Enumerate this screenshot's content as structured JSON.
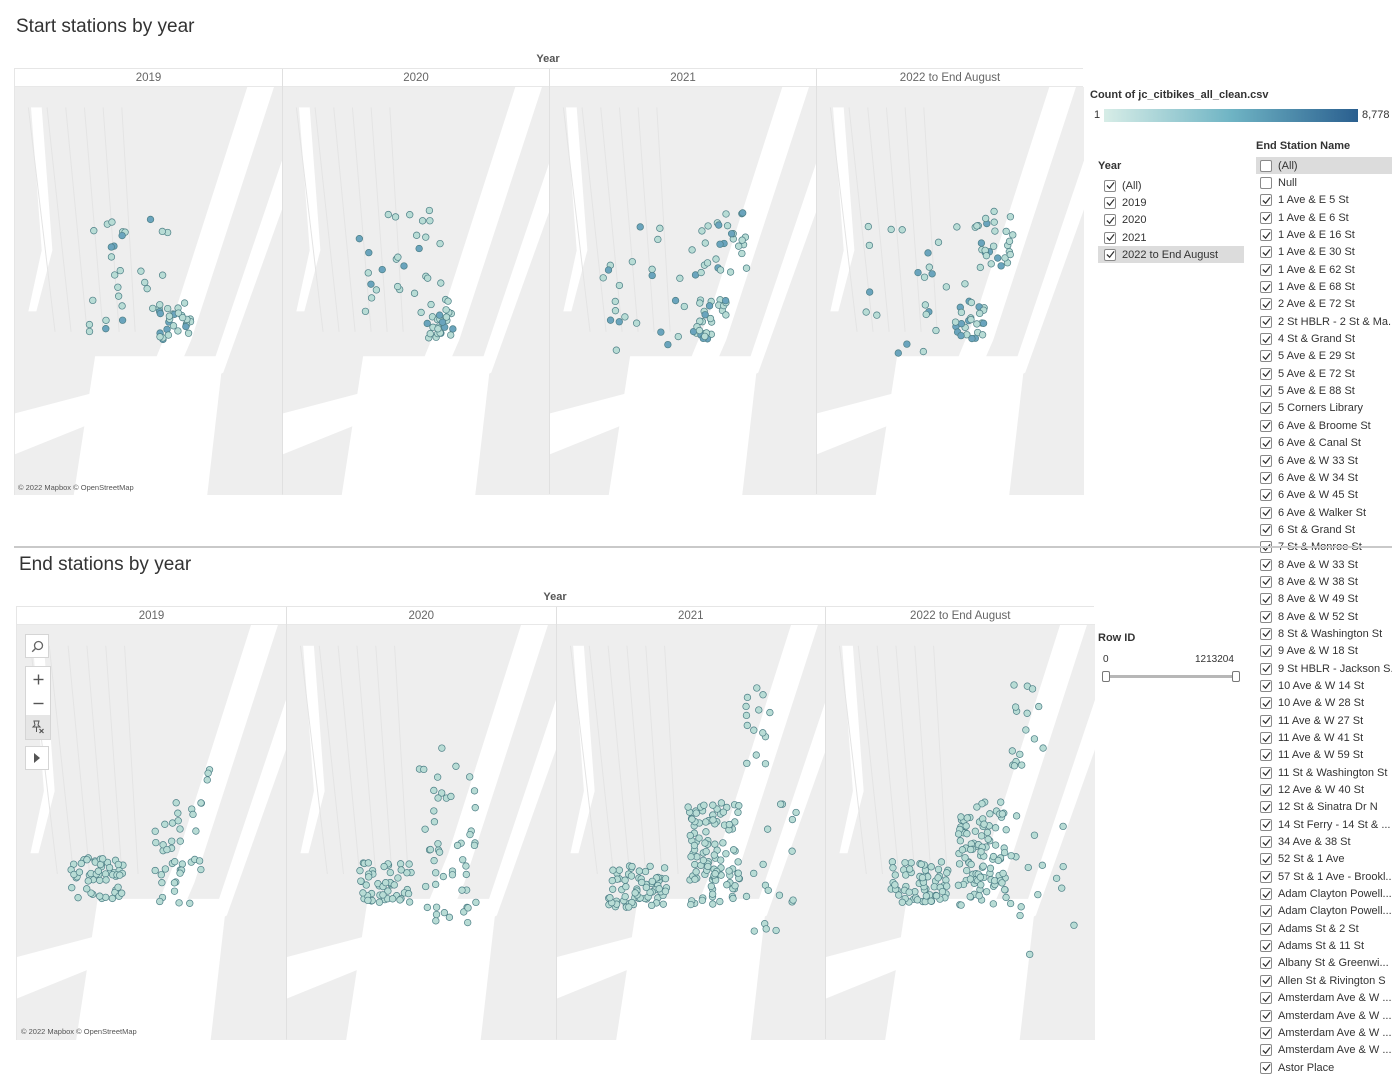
{
  "top": {
    "title": "Start stations by year",
    "year_header": "Year",
    "columns": [
      "2019",
      "2020",
      "2021",
      "2022 to End August"
    ],
    "attribution": "© 2022 Mapbox © OpenStreetMap"
  },
  "bottom": {
    "title": "End stations by year",
    "year_header": "Year",
    "columns": [
      "2019",
      "2020",
      "2021",
      "2022 to End August"
    ],
    "attribution": "© 2022 Mapbox © OpenStreetMap"
  },
  "legend": {
    "title": "Count of jc_citbikes_all_clean.csv",
    "min": "1",
    "max": "8,778",
    "colors": [
      "#d7ede7",
      "#6fb4c4",
      "#2a5f8f"
    ]
  },
  "year_filter": {
    "title": "Year",
    "items": [
      {
        "label": "(All)",
        "checked": true,
        "selected": false
      },
      {
        "label": "2019",
        "checked": true,
        "selected": false
      },
      {
        "label": "2020",
        "checked": true,
        "selected": false
      },
      {
        "label": "2021",
        "checked": true,
        "selected": false
      },
      {
        "label": "2022 to End August",
        "checked": true,
        "selected": true
      }
    ]
  },
  "row_id": {
    "title": "Row ID",
    "min": "0",
    "max": "1213204"
  },
  "end_station_filter": {
    "title": "End Station Name",
    "items": [
      {
        "label": "(All)",
        "checked": false,
        "selected": true
      },
      {
        "label": "Null",
        "checked": false,
        "selected": false
      },
      {
        "label": "1 Ave & E 5 St",
        "checked": true
      },
      {
        "label": "1 Ave & E 6 St",
        "checked": true
      },
      {
        "label": "1 Ave & E 16 St",
        "checked": true
      },
      {
        "label": "1 Ave & E 30 St",
        "checked": true
      },
      {
        "label": "1 Ave & E 62 St",
        "checked": true
      },
      {
        "label": "1 Ave & E 68 St",
        "checked": true
      },
      {
        "label": "2 Ave & E 72 St",
        "checked": true
      },
      {
        "label": "2 St HBLR - 2 St & Ma...",
        "checked": true
      },
      {
        "label": "4 St & Grand St",
        "checked": true
      },
      {
        "label": "5 Ave & E 29 St",
        "checked": true
      },
      {
        "label": "5 Ave & E 72 St",
        "checked": true
      },
      {
        "label": "5 Ave & E 88 St",
        "checked": true
      },
      {
        "label": "5 Corners Library",
        "checked": true
      },
      {
        "label": "6 Ave & Broome St",
        "checked": true
      },
      {
        "label": "6 Ave & Canal St",
        "checked": true
      },
      {
        "label": "6 Ave & W 33 St",
        "checked": true
      },
      {
        "label": "6 Ave & W 34 St",
        "checked": true
      },
      {
        "label": "6 Ave & W 45 St",
        "checked": true
      },
      {
        "label": "6 Ave & Walker St",
        "checked": true
      },
      {
        "label": "6 St & Grand St",
        "checked": true
      },
      {
        "label": "7 St & Monroe St",
        "checked": true
      },
      {
        "label": "8 Ave & W 33 St",
        "checked": true
      },
      {
        "label": "8 Ave & W 38 St",
        "checked": true
      },
      {
        "label": "8 Ave & W 49 St",
        "checked": true
      },
      {
        "label": "8 Ave & W 52 St",
        "checked": true
      },
      {
        "label": "8 St & Washington St",
        "checked": true
      },
      {
        "label": "9 Ave & W 18 St",
        "checked": true
      },
      {
        "label": "9 St HBLR - Jackson S...",
        "checked": true
      },
      {
        "label": "10 Ave & W 14 St",
        "checked": true
      },
      {
        "label": "10 Ave & W 28 St",
        "checked": true
      },
      {
        "label": "11 Ave & W 27 St",
        "checked": true
      },
      {
        "label": "11 Ave & W 41 St",
        "checked": true
      },
      {
        "label": "11 Ave & W 59 St",
        "checked": true
      },
      {
        "label": "11 St & Washington St",
        "checked": true
      },
      {
        "label": "12 Ave & W 40 St",
        "checked": true
      },
      {
        "label": "12 St & Sinatra Dr N",
        "checked": true
      },
      {
        "label": "14 St Ferry - 14 St & ...",
        "checked": true
      },
      {
        "label": "34 Ave & 38 St",
        "checked": true
      },
      {
        "label": "52 St & 1 Ave",
        "checked": true
      },
      {
        "label": "57 St & 1 Ave - Brookl...",
        "checked": true
      },
      {
        "label": "Adam Clayton Powell...",
        "checked": true
      },
      {
        "label": "Adam Clayton Powell...",
        "checked": true
      },
      {
        "label": "Adams St & 2 St",
        "checked": true
      },
      {
        "label": "Adams St & 11 St",
        "checked": true
      },
      {
        "label": "Albany St & Greenwi...",
        "checked": true
      },
      {
        "label": "Allen St & Rivington S",
        "checked": true
      },
      {
        "label": "Amsterdam Ave & W ...",
        "checked": true
      },
      {
        "label": "Amsterdam Ave & W ...",
        "checked": true
      },
      {
        "label": "Amsterdam Ave & W ...",
        "checked": true
      },
      {
        "label": "Amsterdam Ave & W ...",
        "checked": true
      },
      {
        "label": "Astor Place",
        "checked": true
      }
    ]
  },
  "map_tools": [
    "search-icon",
    "zoom-in-icon",
    "zoom-out-icon",
    "pin-reset-icon",
    "expand-arrow-icon"
  ],
  "map_colors": {
    "land": "#eeeeee",
    "water": "#ffffff",
    "dot_fill": "#b8dcd5",
    "dot_stroke": "#4d7f86"
  }
}
